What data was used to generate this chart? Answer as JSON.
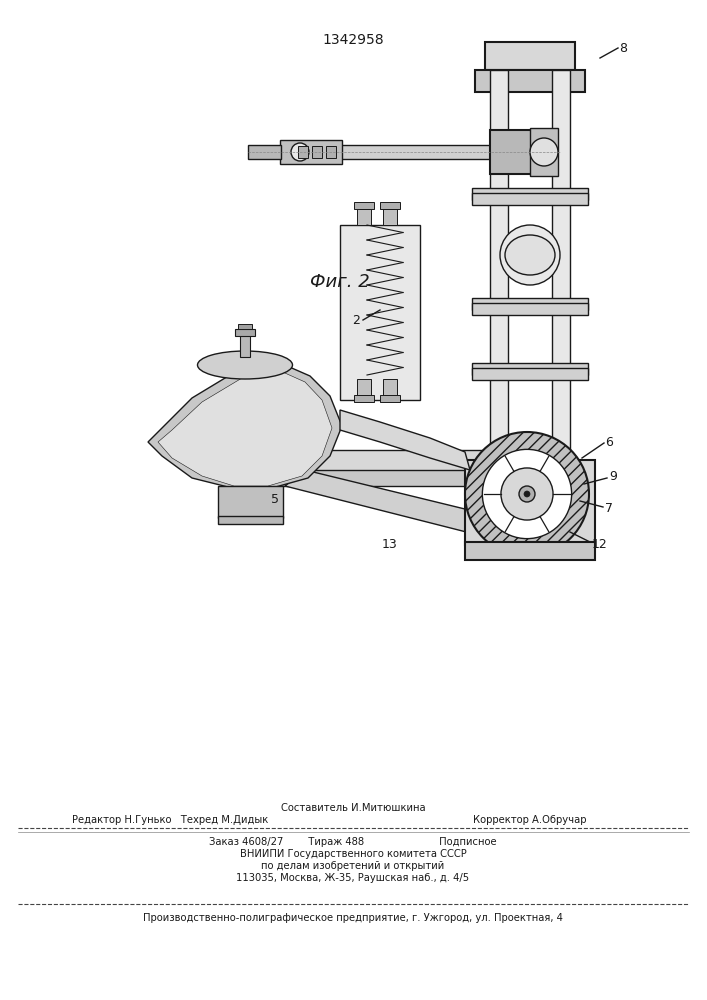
{
  "patent_number": "1342958",
  "fig_label": "Фиг. 2",
  "bg_color": "#ffffff",
  "line_color": "#1a1a1a",
  "footer": {
    "sestavitel": "Составитель И.Митюшкина",
    "redaktor": "Редактор Н.Гунько   Техред М.Дидык",
    "korrektor": "Корректор А.Обручар",
    "zakaz": "Заказ 4608/27        Тираж 488                        Подписное",
    "vniipи": "ВНИИПИ Государственного комитета СССР",
    "dela": "по делам изобретений и открытий",
    "address": "113035, Москва, Ж-35, Раушская наб., д. 4/5",
    "production": "Производственно-полиграфическое предприятие, г. Ужгород, ул. Проектная, 4"
  }
}
